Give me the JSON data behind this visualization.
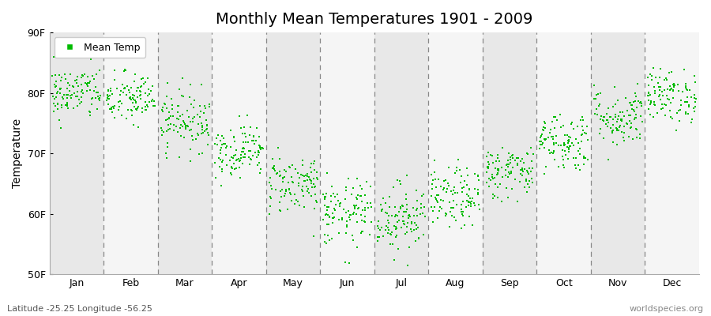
{
  "title": "Monthly Mean Temperatures 1901 - 2009",
  "ylabel": "Temperature",
  "xlabel_months": [
    "Jan",
    "Feb",
    "Mar",
    "Apr",
    "May",
    "Jun",
    "Jul",
    "Aug",
    "Sep",
    "Oct",
    "Nov",
    "Dec"
  ],
  "ylim": [
    50,
    90
  ],
  "yticks": [
    50,
    60,
    70,
    80,
    90
  ],
  "ytick_labels": [
    "50F",
    "60F",
    "70F",
    "80F",
    "90F"
  ],
  "legend_label": "Mean Temp",
  "marker_color": "#00bb00",
  "background_color": "#ffffff",
  "plot_bg_color": "#eeeeee",
  "band_color_even": "#e8e8e8",
  "band_color_odd": "#f5f5f5",
  "subtitle": "Latitude -25.25 Longitude -56.25",
  "watermark": "worldspecies.org",
  "monthly_means_F": [
    80.0,
    79.0,
    75.5,
    70.5,
    65.0,
    60.0,
    59.5,
    62.5,
    67.0,
    72.0,
    76.0,
    79.5
  ],
  "monthly_std_F": [
    2.2,
    2.2,
    2.5,
    2.2,
    2.5,
    2.8,
    2.8,
    2.5,
    2.2,
    2.5,
    2.5,
    2.2
  ],
  "n_years": 109,
  "seed": 42
}
